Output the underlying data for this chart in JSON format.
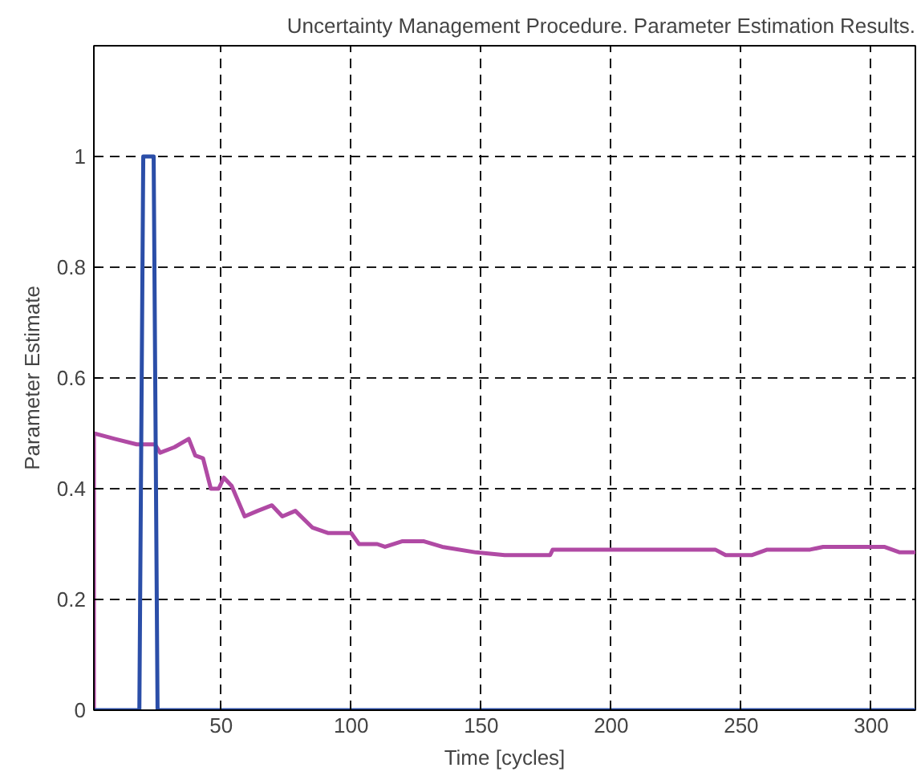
{
  "chart_data": {
    "type": "line",
    "title": "Uncertainty Management Procedure. Parameter Estimation Results.",
    "xlabel": "Time [cycles]",
    "ylabel": "Parameter Estimate",
    "xlim": [
      1,
      317
    ],
    "ylim": [
      0,
      1.2
    ],
    "xticks": [
      50,
      100,
      150,
      200,
      250,
      300
    ],
    "yticks": [
      0,
      0.2,
      0.4,
      0.6,
      0.8,
      1
    ],
    "grid": true,
    "line_style": "solid",
    "marker": "none",
    "series": [
      {
        "color": "#b04aa4",
        "x": [
          1,
          1,
          9,
          17.5,
          24.5,
          26.5,
          32,
          37.5,
          40,
          43,
          46,
          49,
          51,
          54,
          59,
          64,
          69.5,
          73.5,
          78.5,
          85,
          91,
          100,
          103,
          110,
          113,
          119.5,
          128,
          135,
          148,
          159,
          176.5,
          177.5,
          189,
          211,
          240,
          244,
          254,
          260,
          276.5,
          281.5,
          290.5,
          305,
          311,
          317
        ],
        "values": [
          0,
          0.5,
          0.49,
          0.48,
          0.48,
          0.465,
          0.475,
          0.49,
          0.46,
          0.455,
          0.4,
          0.4,
          0.42,
          0.405,
          0.35,
          0.36,
          0.37,
          0.35,
          0.36,
          0.33,
          0.32,
          0.32,
          0.3,
          0.3,
          0.295,
          0.305,
          0.305,
          0.295,
          0.285,
          0.28,
          0.28,
          0.29,
          0.29,
          0.29,
          0.29,
          0.28,
          0.28,
          0.29,
          0.29,
          0.295,
          0.295,
          0.295,
          0.285,
          0.285
        ]
      },
      {
        "color": "#2b4ea8",
        "x": [
          1,
          18.5,
          20,
          24,
          25.5,
          317
        ],
        "values": [
          0,
          0,
          1,
          1,
          0,
          0
        ]
      }
    ]
  }
}
